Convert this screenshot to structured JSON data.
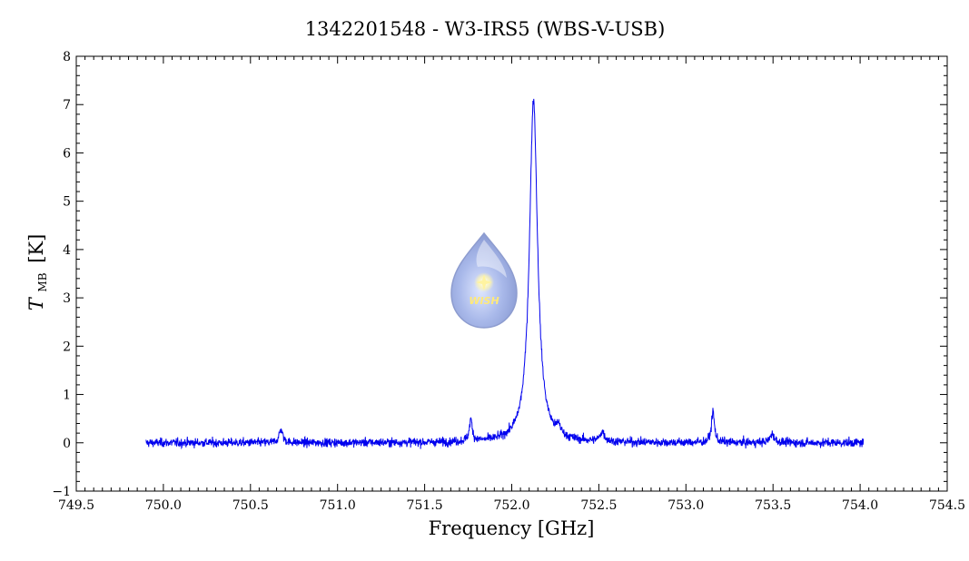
{
  "chart_data": {
    "type": "line",
    "title": "1342201548 - W3-IRS5 (WBS-V-USB)",
    "xlabel": "Frequency [GHz]",
    "ylabel_symbol": "T",
    "ylabel_subscript": "MB",
    "ylabel_unit": "[K]",
    "xlim": [
      749.5,
      754.5
    ],
    "ylim": [
      -1,
      8
    ],
    "x_ticks": [
      "749.5",
      "750.0",
      "750.5",
      "751.0",
      "751.5",
      "752.0",
      "752.5",
      "753.0",
      "753.5",
      "754.0",
      "754.5"
    ],
    "y_ticks": [
      "-1",
      "0",
      "1",
      "2",
      "3",
      "4",
      "5",
      "6",
      "7",
      "8"
    ],
    "grid": false,
    "logo": {
      "text": "WISH"
    },
    "series": [
      {
        "color": "#0000ee",
        "x_range": [
          749.9,
          754.02
        ],
        "baseline": 0.0,
        "noise_rms": 0.045,
        "peaks": [
          {
            "x": 750.675,
            "height": 0.28,
            "width": 0.012
          },
          {
            "x": 751.765,
            "height": 0.45,
            "width": 0.01
          },
          {
            "x": 752.125,
            "height": 7.1,
            "width": 0.028
          },
          {
            "x": 752.27,
            "height": 0.18,
            "width": 0.012
          },
          {
            "x": 752.52,
            "height": 0.2,
            "width": 0.015
          },
          {
            "x": 753.155,
            "height": 0.65,
            "width": 0.01
          },
          {
            "x": 753.495,
            "height": 0.18,
            "width": 0.015
          }
        ]
      }
    ]
  }
}
